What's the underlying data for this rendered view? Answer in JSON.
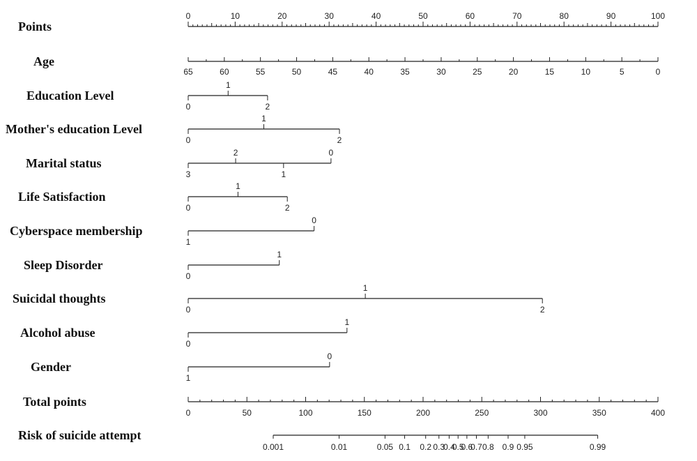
{
  "chart_data": {
    "type": "nomogram",
    "points_scale": {
      "label": "Points",
      "ticks": [
        0,
        10,
        20,
        30,
        40,
        50,
        60,
        70,
        80,
        90,
        100
      ]
    },
    "variables": [
      {
        "label": "Age",
        "ticks": [
          {
            "text": "65",
            "points": 0
          },
          {
            "text": "60",
            "points": 7.69
          },
          {
            "text": "55",
            "points": 15.38
          },
          {
            "text": "50",
            "points": 23.08
          },
          {
            "text": "45",
            "points": 30.77
          },
          {
            "text": "40",
            "points": 38.46
          },
          {
            "text": "35",
            "points": 46.15
          },
          {
            "text": "30",
            "points": 53.85
          },
          {
            "text": "25",
            "points": 61.54
          },
          {
            "text": "20",
            "points": 69.23
          },
          {
            "text": "15",
            "points": 76.92
          },
          {
            "text": "10",
            "points": 84.62
          },
          {
            "text": "5",
            "points": 92.31
          },
          {
            "text": "0",
            "points": 100
          }
        ]
      },
      {
        "label": "Education Level",
        "ticks": [
          {
            "text": "0",
            "points": 0,
            "pos": "below"
          },
          {
            "text": "1",
            "points": 8.5,
            "pos": "above"
          },
          {
            "text": "2",
            "points": 16.9,
            "pos": "below"
          }
        ]
      },
      {
        "label": "Mother's education Level",
        "ticks": [
          {
            "text": "0",
            "points": 0,
            "pos": "below"
          },
          {
            "text": "1",
            "points": 16.1,
            "pos": "above"
          },
          {
            "text": "2",
            "points": 32.2,
            "pos": "below"
          }
        ]
      },
      {
        "label": "Marital status",
        "ticks": [
          {
            "text": "3",
            "points": 0,
            "pos": "below"
          },
          {
            "text": "2",
            "points": 10.1,
            "pos": "above"
          },
          {
            "text": "1",
            "points": 20.3,
            "pos": "below"
          },
          {
            "text": "0",
            "points": 30.4,
            "pos": "above"
          }
        ]
      },
      {
        "label": "Life Satisfaction",
        "ticks": [
          {
            "text": "0",
            "points": 0,
            "pos": "below"
          },
          {
            "text": "1",
            "points": 10.6,
            "pos": "above"
          },
          {
            "text": "2",
            "points": 21.1,
            "pos": "below"
          }
        ]
      },
      {
        "label": "Cyberspace membership",
        "ticks": [
          {
            "text": "1",
            "points": 0,
            "pos": "below"
          },
          {
            "text": "0",
            "points": 26.8,
            "pos": "above"
          }
        ]
      },
      {
        "label": "Sleep Disorder",
        "ticks": [
          {
            "text": "0",
            "points": 0,
            "pos": "below"
          },
          {
            "text": "1",
            "points": 19.4,
            "pos": "above"
          }
        ]
      },
      {
        "label": "Suicidal thoughts",
        "ticks": [
          {
            "text": "0",
            "points": 0,
            "pos": "below"
          },
          {
            "text": "1",
            "points": 37.7,
            "pos": "above"
          },
          {
            "text": "2",
            "points": 75.4,
            "pos": "below"
          }
        ]
      },
      {
        "label": "Alcohol abuse",
        "ticks": [
          {
            "text": "0",
            "points": 0,
            "pos": "below"
          },
          {
            "text": "1",
            "points": 33.8,
            "pos": "above"
          }
        ]
      },
      {
        "label": "Gender",
        "ticks": [
          {
            "text": "1",
            "points": 0,
            "pos": "below"
          },
          {
            "text": "0",
            "points": 30.1,
            "pos": "above"
          }
        ]
      }
    ],
    "total_points": {
      "label": "Total points",
      "range": [
        0,
        400
      ],
      "ticks": [
        0,
        50,
        100,
        150,
        200,
        250,
        300,
        350,
        400
      ]
    },
    "risk": {
      "label": "Risk of suicide attempt",
      "ticks": [
        {
          "text": "0.001",
          "total": 72.4
        },
        {
          "text": "0.01",
          "total": 128.5
        },
        {
          "text": "0.05",
          "total": 167.6
        },
        {
          "text": "0.1",
          "total": 184.3
        },
        {
          "text": "0.2",
          "total": 202.2
        },
        {
          "text": "0.3",
          "total": 213.5
        },
        {
          "text": "0.4",
          "total": 222.2
        },
        {
          "text": "0.5",
          "total": 229.8
        },
        {
          "text": "0.6",
          "total": 237.3
        },
        {
          "text": "0.7",
          "total": 245.4
        },
        {
          "text": "0.8",
          "total": 255.4
        },
        {
          "text": "0.9",
          "total": 272.4
        },
        {
          "text": "0.95",
          "total": 286.6
        },
        {
          "text": "0.99",
          "total": 348.7
        }
      ]
    }
  }
}
